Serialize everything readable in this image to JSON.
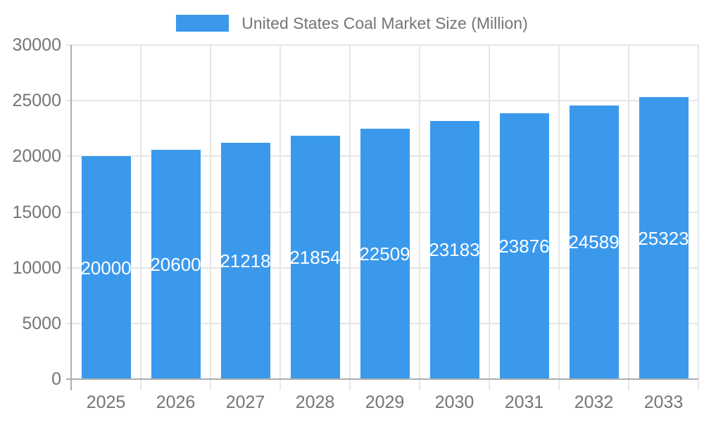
{
  "legend": {
    "swatch_color": "#3B99EC"
  },
  "chart_data": {
    "type": "bar",
    "title": "United States Coal Market Size (Million)",
    "categories": [
      "2025",
      "2026",
      "2027",
      "2028",
      "2029",
      "2030",
      "2031",
      "2032",
      "2033"
    ],
    "values": [
      20000,
      20600,
      21218,
      21854,
      22509,
      23183,
      23876,
      24589,
      25323
    ],
    "value_labels": [
      "20000",
      "20600",
      "21218",
      "21854",
      "22509",
      "23183",
      "23876",
      "24589",
      "25323"
    ],
    "xlabel": "",
    "ylabel": "",
    "ylim": [
      0,
      30000
    ],
    "yticks": [
      0,
      5000,
      10000,
      15000,
      20000,
      25000,
      30000
    ],
    "ytick_labels": [
      "0",
      "5000",
      "10000",
      "15000",
      "20000",
      "25000",
      "30000"
    ],
    "grid": true,
    "legend_position": "top",
    "bar_color": "#3B99EC",
    "value_text_color": "#FFFFFF",
    "axis_text_color": "#757575",
    "grid_color": "#E6E6E6",
    "axis_line_color": "#ADADAD",
    "background_color": "#FFFFFF"
  }
}
